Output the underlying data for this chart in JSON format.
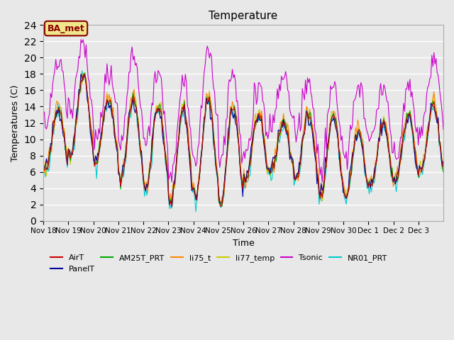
{
  "title": "Temperature",
  "xlabel": "Time",
  "ylabel": "Temperatures (C)",
  "ylim": [
    0,
    24
  ],
  "annotation_text": "BA_met",
  "annotation_bg": "#f0e68c",
  "annotation_border": "#8b0000",
  "bg_color": "#e8e8e8",
  "plot_bg": "#e8e8e8",
  "grid_color": "white",
  "series_colors": {
    "AirT": "#cc0000",
    "PanelT": "#000099",
    "AM25T_PRT": "#00aa00",
    "li75_t": "#ff8800",
    "li77_temp": "#cccc00",
    "Tsonic": "#cc00cc",
    "NR01_PRT": "#00cccc"
  },
  "legend_order": [
    "AirT",
    "PanelT",
    "AM25T_PRT",
    "li75_t",
    "li77_temp",
    "Tsonic",
    "NR01_PRT"
  ],
  "x_tick_labels": [
    "Nov 18",
    "Nov 19",
    "Nov 20",
    "Nov 21",
    "Nov 22",
    "Nov 23",
    "Nov 24",
    "Nov 25",
    "Nov 26",
    "Nov 27",
    "Nov 28",
    "Nov 29",
    "Nov 30",
    "Dec 1",
    "Dec 2",
    "Dec 3"
  ],
  "y_ticks": [
    0,
    2,
    4,
    6,
    8,
    10,
    12,
    14,
    16,
    18,
    20,
    22,
    24
  ]
}
